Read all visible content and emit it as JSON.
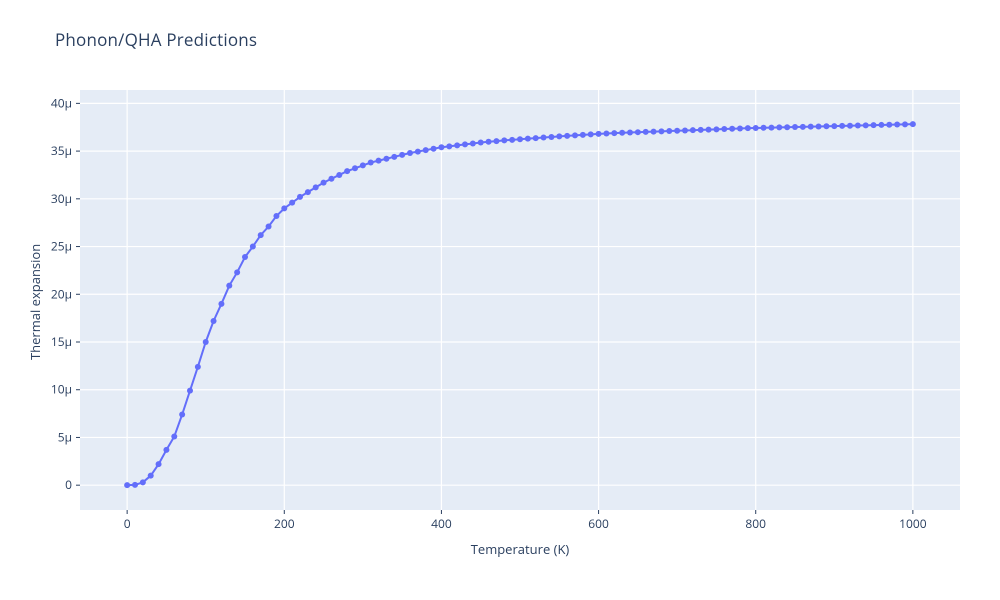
{
  "title": "Phonon/QHA Predictions",
  "xaxis_title": "Temperature (K)",
  "yaxis_title": "Thermal expansion",
  "chart": {
    "type": "line+markers",
    "background_color": "#ffffff",
    "plot_bgcolor": "#e5ecf6",
    "gridline_color": "#ffffff",
    "zeroline_color": "#ffffff",
    "line_color": "#636efa",
    "line_width": 2,
    "marker_color": "#636efa",
    "marker_size": 5,
    "marker_style": "circle",
    "tick_font_size": 12,
    "axis_title_font_size": 13,
    "title_font_size": 17,
    "axis_title_color": "#2a3f5f",
    "tick_color": "#2a3f5f",
    "axis_tick_length": 4,
    "xlim": [
      -60,
      1060
    ],
    "ylim": [
      -2.6,
      41.4
    ],
    "xticks": [
      0,
      200,
      400,
      600,
      800,
      1000
    ],
    "xtick_labels": [
      "0",
      "200",
      "400",
      "600",
      "800",
      "1000"
    ],
    "yticks": [
      0,
      5,
      10,
      15,
      20,
      25,
      30,
      35,
      40
    ],
    "ytick_labels": [
      "0",
      "5μ",
      "10μ",
      "15μ",
      "20μ",
      "25μ",
      "30μ",
      "35μ",
      "40μ"
    ],
    "series": {
      "x": [
        0,
        10,
        20,
        30,
        40,
        50,
        60,
        70,
        80,
        90,
        100,
        110,
        120,
        130,
        140,
        150,
        160,
        170,
        180,
        190,
        200,
        210,
        220,
        230,
        240,
        250,
        260,
        270,
        280,
        290,
        300,
        310,
        320,
        330,
        340,
        350,
        360,
        370,
        380,
        390,
        400,
        410,
        420,
        430,
        440,
        450,
        460,
        470,
        480,
        490,
        500,
        510,
        520,
        530,
        540,
        550,
        560,
        570,
        580,
        590,
        600,
        610,
        620,
        630,
        640,
        650,
        660,
        670,
        680,
        690,
        700,
        710,
        720,
        730,
        740,
        750,
        760,
        770,
        780,
        790,
        800,
        810,
        820,
        830,
        840,
        850,
        860,
        870,
        880,
        890,
        900,
        910,
        920,
        930,
        940,
        950,
        960,
        970,
        980,
        990,
        1000
      ],
      "y": [
        0.0,
        0.03,
        0.3,
        1.0,
        2.2,
        3.7,
        5.1,
        7.4,
        9.9,
        12.4,
        15.0,
        17.2,
        19.0,
        20.9,
        22.3,
        23.9,
        25.0,
        26.2,
        27.1,
        28.2,
        29.0,
        29.6,
        30.2,
        30.7,
        31.2,
        31.7,
        32.1,
        32.5,
        32.9,
        33.2,
        33.5,
        33.8,
        34.0,
        34.2,
        34.4,
        34.6,
        34.8,
        34.95,
        35.1,
        35.25,
        35.4,
        35.5,
        35.6,
        35.7,
        35.8,
        35.9,
        35.98,
        36.05,
        36.12,
        36.18,
        36.24,
        36.3,
        36.36,
        36.42,
        36.48,
        36.54,
        36.6,
        36.65,
        36.7,
        36.75,
        36.8,
        36.84,
        36.88,
        36.92,
        36.95,
        36.98,
        37.01,
        37.04,
        37.07,
        37.1,
        37.13,
        37.16,
        37.19,
        37.22,
        37.25,
        37.28,
        37.31,
        37.34,
        37.37,
        37.4,
        37.42,
        37.44,
        37.46,
        37.48,
        37.5,
        37.52,
        37.54,
        37.56,
        37.58,
        37.6,
        37.62,
        37.64,
        37.66,
        37.68,
        37.7,
        37.72,
        37.74,
        37.76,
        37.78,
        37.8,
        37.82
      ]
    }
  }
}
